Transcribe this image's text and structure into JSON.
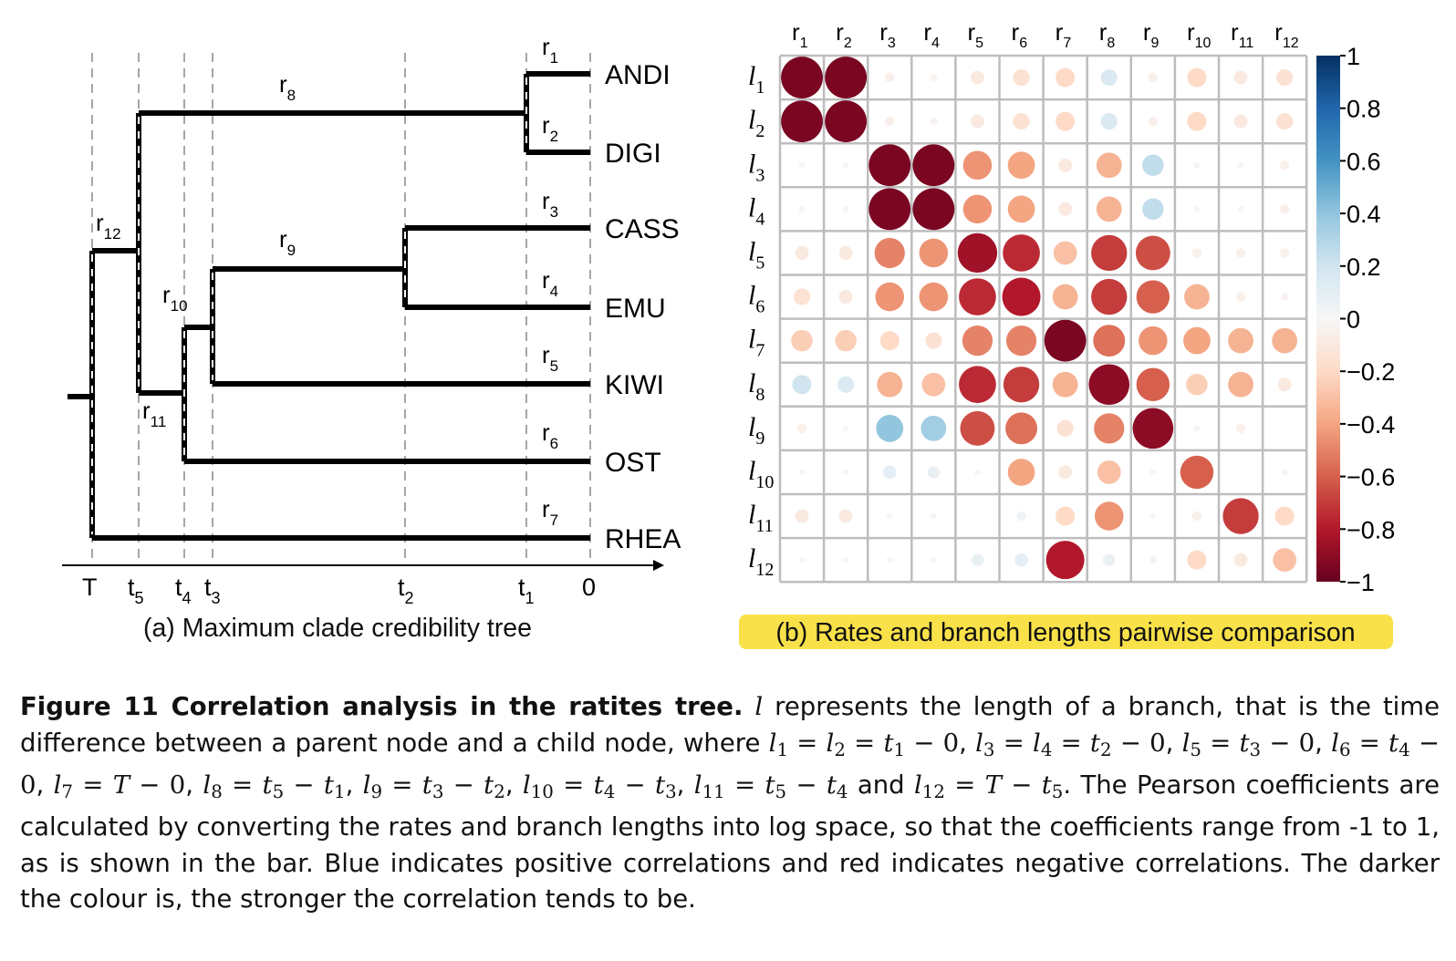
{
  "tree": {
    "caption": "(a) Maximum clade credibility tree",
    "taxa": [
      "ANDI",
      "DIGI",
      "CASS",
      "EMU",
      "KIWI",
      "OST",
      "RHEA"
    ],
    "time_ticks": [
      {
        "base": "T",
        "sub": ""
      },
      {
        "base": "t",
        "sub": "5"
      },
      {
        "base": "t",
        "sub": "4"
      },
      {
        "base": "t",
        "sub": "3"
      },
      {
        "base": "t",
        "sub": "2"
      },
      {
        "base": "t",
        "sub": "1"
      },
      {
        "base": "0",
        "sub": ""
      }
    ],
    "rate_labels": [
      "1",
      "2",
      "3",
      "4",
      "5",
      "6",
      "7",
      "8",
      "9",
      "10",
      "11",
      "12"
    ]
  },
  "matrix": {
    "caption": "(b) Rates and branch lengths pairwise comparison",
    "caption_highlight": "#f9e14a",
    "col_labels": [
      "1",
      "2",
      "3",
      "4",
      "5",
      "6",
      "7",
      "8",
      "9",
      "10",
      "11",
      "12"
    ],
    "row_labels": [
      "1",
      "2",
      "3",
      "4",
      "5",
      "6",
      "7",
      "8",
      "9",
      "10",
      "11",
      "12"
    ],
    "colorbar_ticks": [
      "1",
      "0.8",
      "0.6",
      "0.4",
      "0.2",
      "0",
      "−0.2",
      "−0.4",
      "−0.6",
      "−0.8",
      "−1"
    ]
  },
  "chart_data": {
    "type": "heatmap",
    "x_categories": [
      "r1",
      "r2",
      "r3",
      "r4",
      "r5",
      "r6",
      "r7",
      "r8",
      "r9",
      "r10",
      "r11",
      "r12"
    ],
    "y_categories": [
      "l1",
      "l2",
      "l3",
      "l4",
      "l5",
      "l6",
      "l7",
      "l8",
      "l9",
      "l10",
      "l11",
      "l12"
    ],
    "value_range": [
      -1,
      1
    ],
    "colors": {
      "negative_end": "#67001f",
      "zero": "#f7f7f7",
      "positive_end": "#053061"
    },
    "values": [
      [
        -0.95,
        -0.95,
        -0.05,
        -0.03,
        -0.1,
        -0.15,
        -0.2,
        0.15,
        -0.05,
        -0.2,
        -0.1,
        -0.15
      ],
      [
        -0.95,
        -0.95,
        -0.05,
        -0.03,
        -0.1,
        -0.15,
        -0.2,
        0.15,
        -0.05,
        -0.2,
        -0.1,
        -0.15
      ],
      [
        -0.02,
        -0.02,
        -0.95,
        -0.95,
        -0.45,
        -0.4,
        -0.1,
        -0.35,
        0.25,
        -0.02,
        -0.02,
        -0.05
      ],
      [
        -0.02,
        -0.02,
        -0.95,
        -0.95,
        -0.45,
        -0.4,
        -0.1,
        -0.35,
        0.25,
        -0.02,
        -0.02,
        -0.05
      ],
      [
        -0.1,
        -0.1,
        -0.5,
        -0.45,
        -0.85,
        -0.75,
        -0.3,
        -0.7,
        -0.65,
        -0.05,
        -0.05,
        -0.05
      ],
      [
        -0.15,
        -0.1,
        -0.45,
        -0.45,
        -0.75,
        -0.8,
        -0.35,
        -0.7,
        -0.6,
        -0.35,
        -0.05,
        -0.03
      ],
      [
        -0.25,
        -0.25,
        -0.2,
        -0.15,
        -0.5,
        -0.5,
        -0.95,
        -0.55,
        -0.45,
        -0.4,
        -0.35,
        -0.35
      ],
      [
        0.2,
        0.15,
        -0.35,
        -0.3,
        -0.75,
        -0.7,
        -0.35,
        -0.9,
        -0.6,
        -0.25,
        -0.35,
        -0.1
      ],
      [
        -0.05,
        -0.02,
        0.4,
        0.35,
        -0.65,
        -0.55,
        -0.15,
        -0.5,
        -0.9,
        -0.02,
        -0.05,
        0
      ],
      [
        -0.02,
        -0.02,
        0.1,
        0.08,
        -0.02,
        -0.4,
        -0.1,
        -0.3,
        -0.02,
        -0.6,
        0,
        -0.02
      ],
      [
        -0.1,
        -0.1,
        -0.02,
        0.02,
        0,
        0.05,
        -0.2,
        -0.45,
        -0.02,
        -0.05,
        -0.7,
        -0.2
      ],
      [
        -0.02,
        -0.02,
        -0.02,
        -0.02,
        0.08,
        0.1,
        -0.8,
        0.08,
        0.03,
        -0.2,
        -0.1,
        -0.3
      ]
    ]
  },
  "figure_caption": {
    "title": "Figure 11 Correlation analysis in the ratites tree.",
    "s1": " represents the length of a branch, that is the time difference between a parent node and a child node, where ",
    "s2": ". The Pearson coefficients are calculated by converting the rates and branch lengths into log space, so that the coefficients range from -1 to 1, as is shown in the bar. Blue indicates positive correlations and red indicates negative correlations. The darker the colour is, the stronger the correlation tends to be.",
    "var_l": "l",
    "equations": [
      {
        "l": [
          "1",
          "2"
        ],
        "rhs": "t",
        "rhs_sub": "1",
        "minus": "0"
      },
      {
        "l": [
          "3",
          "4"
        ],
        "rhs": "t",
        "rhs_sub": "2",
        "minus": "0"
      },
      {
        "l": [
          "5"
        ],
        "rhs": "t",
        "rhs_sub": "3",
        "minus": "0"
      },
      {
        "l": [
          "6"
        ],
        "rhs": "t",
        "rhs_sub": "4",
        "minus": "0"
      },
      {
        "l": [
          "7"
        ],
        "rhs": "T",
        "rhs_sub": "",
        "minus": "0"
      },
      {
        "l": [
          "8"
        ],
        "rhs": "t",
        "rhs_sub": "5",
        "minus": "t1"
      },
      {
        "l": [
          "9"
        ],
        "rhs": "t",
        "rhs_sub": "3",
        "minus": "t2"
      },
      {
        "l": [
          "10"
        ],
        "rhs": "t",
        "rhs_sub": "4",
        "minus": "t3"
      },
      {
        "l": [
          "11"
        ],
        "rhs": "t",
        "rhs_sub": "5",
        "minus": "t4"
      },
      {
        "l": [
          "12"
        ],
        "rhs": "T",
        "rhs_sub": "",
        "minus": "t5"
      }
    ],
    "and_word": "and"
  }
}
